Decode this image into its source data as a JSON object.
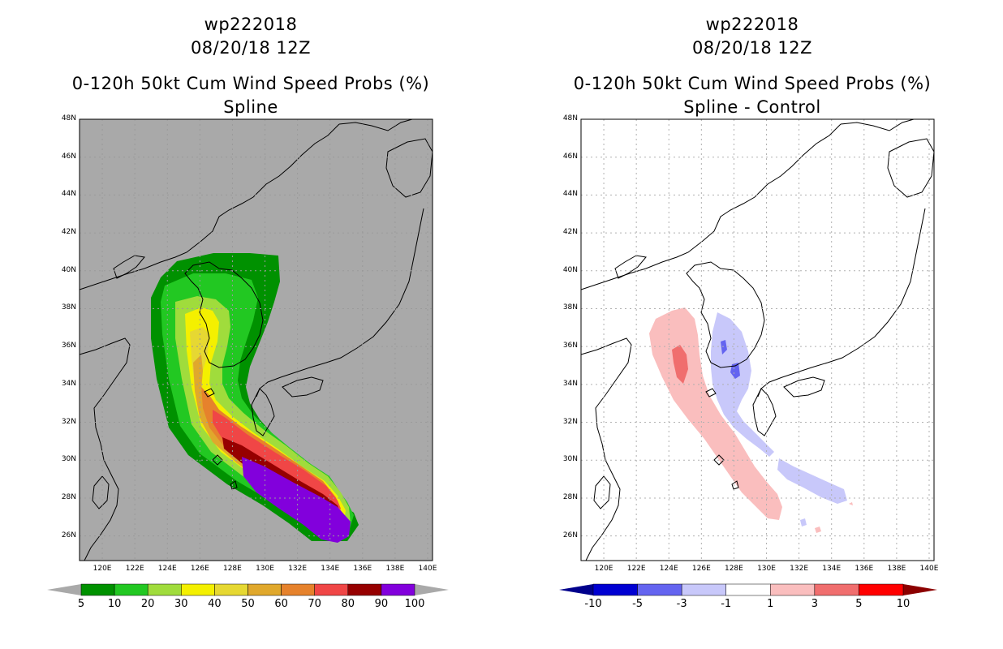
{
  "left_panel": {
    "title_line1": "wp222018",
    "title_line2": "08/20/18 12Z",
    "title_line3": "0-120h 50kt Cum Wind Speed Probs (%)",
    "title_line4": "Spline",
    "background": "#a9a9a9",
    "colorbar": {
      "labels": [
        "5",
        "10",
        "20",
        "30",
        "40",
        "50",
        "60",
        "70",
        "80",
        "90",
        "100"
      ],
      "colors": [
        "#009100",
        "#22c822",
        "#a0dc3c",
        "#f4f000",
        "#e6d832",
        "#e0a82c",
        "#e6822c",
        "#f04646",
        "#960000",
        "#8200dc"
      ],
      "arrow_color": "#a9a9a9"
    }
  },
  "right_panel": {
    "title_line1": "wp222018",
    "title_line2": "08/20/18 12Z",
    "title_line3": "0-120h 50kt Cum Wind Speed Probs (%)",
    "title_line4": "Spline - Control",
    "background": "#ffffff",
    "colorbar": {
      "labels": [
        "-10",
        "-5",
        "-3",
        "-1",
        "1",
        "3",
        "5",
        "10"
      ],
      "colors": [
        "#0000d2",
        "#6464f0",
        "#c8c8fa",
        "#ffffff",
        "#fabebe",
        "#f06e6e",
        "#ff0000"
      ],
      "left_arrow_color": "#00008c",
      "right_arrow_color": "#8c0000"
    }
  },
  "map": {
    "lat_labels": [
      "48N",
      "46N",
      "44N",
      "42N",
      "40N",
      "38N",
      "36N",
      "34N",
      "32N",
      "30N",
      "28N",
      "26N"
    ],
    "lon_labels": [
      "120E",
      "122E",
      "124E",
      "126E",
      "128E",
      "130E",
      "132E",
      "134E",
      "136E",
      "138E",
      "140E"
    ],
    "lat_range": [
      24.7,
      48
    ],
    "lon_range": [
      118.6,
      140.3
    ]
  }
}
